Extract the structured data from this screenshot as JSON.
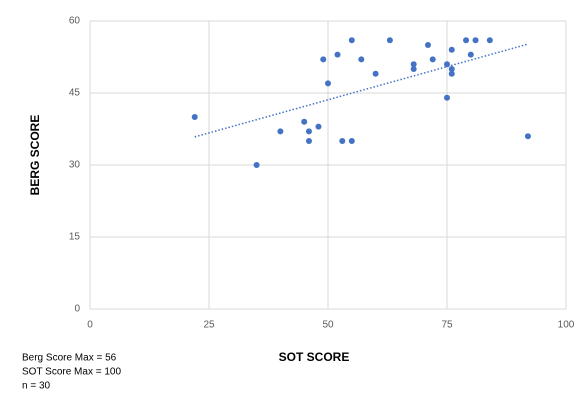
{
  "chart_data": {
    "type": "scatter",
    "xlabel": "SOT SCORE",
    "ylabel": "BERG SCORE",
    "x": [
      22,
      35,
      40,
      45,
      46,
      46,
      48,
      49,
      50,
      52,
      53,
      55,
      55,
      57,
      60,
      63,
      68,
      68,
      71,
      72,
      75,
      75,
      76,
      76,
      76,
      79,
      80,
      81,
      84,
      92
    ],
    "values": [
      40,
      30,
      37,
      39,
      37,
      35,
      38,
      52,
      47,
      53,
      35,
      35,
      56,
      52,
      49,
      56,
      51,
      50,
      55,
      52,
      51,
      44,
      54,
      50,
      49,
      56,
      53,
      56,
      56,
      36
    ],
    "color": "#4472c4",
    "trendline": true,
    "grid": true,
    "xlim": [
      0,
      100
    ],
    "xticks": [
      0,
      25,
      50,
      75,
      100
    ],
    "ylim": [
      0,
      60
    ],
    "yticks": [
      0,
      15,
      30,
      45,
      60
    ],
    "notes": [
      "Berg Score Max = 56",
      "SOT Score Max = 100",
      "n = 30"
    ]
  }
}
